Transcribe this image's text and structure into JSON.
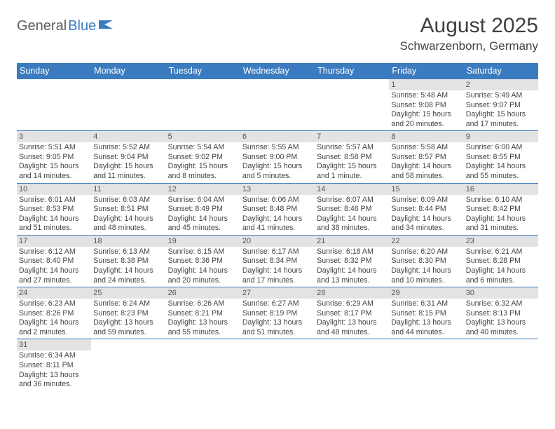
{
  "logo": {
    "part1": "General",
    "part2": "Blue"
  },
  "title": "August 2025",
  "location": "Schwarzenborn, Germany",
  "header_bg": "#3b7bbf",
  "daynum_bg": "#e3e3e3",
  "daybody_color": "#444444",
  "weekdays": [
    "Sunday",
    "Monday",
    "Tuesday",
    "Wednesday",
    "Thursday",
    "Friday",
    "Saturday"
  ],
  "weeks": [
    [
      null,
      null,
      null,
      null,
      null,
      {
        "n": "1",
        "sr": "Sunrise: 5:48 AM",
        "ss": "Sunset: 9:08 PM",
        "d1": "Daylight: 15 hours",
        "d2": "and 20 minutes."
      },
      {
        "n": "2",
        "sr": "Sunrise: 5:49 AM",
        "ss": "Sunset: 9:07 PM",
        "d1": "Daylight: 15 hours",
        "d2": "and 17 minutes."
      }
    ],
    [
      {
        "n": "3",
        "sr": "Sunrise: 5:51 AM",
        "ss": "Sunset: 9:05 PM",
        "d1": "Daylight: 15 hours",
        "d2": "and 14 minutes."
      },
      {
        "n": "4",
        "sr": "Sunrise: 5:52 AM",
        "ss": "Sunset: 9:04 PM",
        "d1": "Daylight: 15 hours",
        "d2": "and 11 minutes."
      },
      {
        "n": "5",
        "sr": "Sunrise: 5:54 AM",
        "ss": "Sunset: 9:02 PM",
        "d1": "Daylight: 15 hours",
        "d2": "and 8 minutes."
      },
      {
        "n": "6",
        "sr": "Sunrise: 5:55 AM",
        "ss": "Sunset: 9:00 PM",
        "d1": "Daylight: 15 hours",
        "d2": "and 5 minutes."
      },
      {
        "n": "7",
        "sr": "Sunrise: 5:57 AM",
        "ss": "Sunset: 8:58 PM",
        "d1": "Daylight: 15 hours",
        "d2": "and 1 minute."
      },
      {
        "n": "8",
        "sr": "Sunrise: 5:58 AM",
        "ss": "Sunset: 8:57 PM",
        "d1": "Daylight: 14 hours",
        "d2": "and 58 minutes."
      },
      {
        "n": "9",
        "sr": "Sunrise: 6:00 AM",
        "ss": "Sunset: 8:55 PM",
        "d1": "Daylight: 14 hours",
        "d2": "and 55 minutes."
      }
    ],
    [
      {
        "n": "10",
        "sr": "Sunrise: 6:01 AM",
        "ss": "Sunset: 8:53 PM",
        "d1": "Daylight: 14 hours",
        "d2": "and 51 minutes."
      },
      {
        "n": "11",
        "sr": "Sunrise: 6:03 AM",
        "ss": "Sunset: 8:51 PM",
        "d1": "Daylight: 14 hours",
        "d2": "and 48 minutes."
      },
      {
        "n": "12",
        "sr": "Sunrise: 6:04 AM",
        "ss": "Sunset: 8:49 PM",
        "d1": "Daylight: 14 hours",
        "d2": "and 45 minutes."
      },
      {
        "n": "13",
        "sr": "Sunrise: 6:06 AM",
        "ss": "Sunset: 8:48 PM",
        "d1": "Daylight: 14 hours",
        "d2": "and 41 minutes."
      },
      {
        "n": "14",
        "sr": "Sunrise: 6:07 AM",
        "ss": "Sunset: 8:46 PM",
        "d1": "Daylight: 14 hours",
        "d2": "and 38 minutes."
      },
      {
        "n": "15",
        "sr": "Sunrise: 6:09 AM",
        "ss": "Sunset: 8:44 PM",
        "d1": "Daylight: 14 hours",
        "d2": "and 34 minutes."
      },
      {
        "n": "16",
        "sr": "Sunrise: 6:10 AM",
        "ss": "Sunset: 8:42 PM",
        "d1": "Daylight: 14 hours",
        "d2": "and 31 minutes."
      }
    ],
    [
      {
        "n": "17",
        "sr": "Sunrise: 6:12 AM",
        "ss": "Sunset: 8:40 PM",
        "d1": "Daylight: 14 hours",
        "d2": "and 27 minutes."
      },
      {
        "n": "18",
        "sr": "Sunrise: 6:13 AM",
        "ss": "Sunset: 8:38 PM",
        "d1": "Daylight: 14 hours",
        "d2": "and 24 minutes."
      },
      {
        "n": "19",
        "sr": "Sunrise: 6:15 AM",
        "ss": "Sunset: 8:36 PM",
        "d1": "Daylight: 14 hours",
        "d2": "and 20 minutes."
      },
      {
        "n": "20",
        "sr": "Sunrise: 6:17 AM",
        "ss": "Sunset: 8:34 PM",
        "d1": "Daylight: 14 hours",
        "d2": "and 17 minutes."
      },
      {
        "n": "21",
        "sr": "Sunrise: 6:18 AM",
        "ss": "Sunset: 8:32 PM",
        "d1": "Daylight: 14 hours",
        "d2": "and 13 minutes."
      },
      {
        "n": "22",
        "sr": "Sunrise: 6:20 AM",
        "ss": "Sunset: 8:30 PM",
        "d1": "Daylight: 14 hours",
        "d2": "and 10 minutes."
      },
      {
        "n": "23",
        "sr": "Sunrise: 6:21 AM",
        "ss": "Sunset: 8:28 PM",
        "d1": "Daylight: 14 hours",
        "d2": "and 6 minutes."
      }
    ],
    [
      {
        "n": "24",
        "sr": "Sunrise: 6:23 AM",
        "ss": "Sunset: 8:26 PM",
        "d1": "Daylight: 14 hours",
        "d2": "and 2 minutes."
      },
      {
        "n": "25",
        "sr": "Sunrise: 6:24 AM",
        "ss": "Sunset: 8:23 PM",
        "d1": "Daylight: 13 hours",
        "d2": "and 59 minutes."
      },
      {
        "n": "26",
        "sr": "Sunrise: 6:26 AM",
        "ss": "Sunset: 8:21 PM",
        "d1": "Daylight: 13 hours",
        "d2": "and 55 minutes."
      },
      {
        "n": "27",
        "sr": "Sunrise: 6:27 AM",
        "ss": "Sunset: 8:19 PM",
        "d1": "Daylight: 13 hours",
        "d2": "and 51 minutes."
      },
      {
        "n": "28",
        "sr": "Sunrise: 6:29 AM",
        "ss": "Sunset: 8:17 PM",
        "d1": "Daylight: 13 hours",
        "d2": "and 48 minutes."
      },
      {
        "n": "29",
        "sr": "Sunrise: 6:31 AM",
        "ss": "Sunset: 8:15 PM",
        "d1": "Daylight: 13 hours",
        "d2": "and 44 minutes."
      },
      {
        "n": "30",
        "sr": "Sunrise: 6:32 AM",
        "ss": "Sunset: 8:13 PM",
        "d1": "Daylight: 13 hours",
        "d2": "and 40 minutes."
      }
    ],
    [
      {
        "n": "31",
        "sr": "Sunrise: 6:34 AM",
        "ss": "Sunset: 8:11 PM",
        "d1": "Daylight: 13 hours",
        "d2": "and 36 minutes."
      },
      null,
      null,
      null,
      null,
      null,
      null
    ]
  ]
}
